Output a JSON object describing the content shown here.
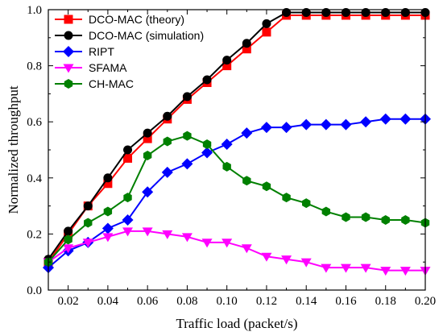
{
  "chart_data": {
    "type": "line",
    "title": "",
    "xlabel": "Traffic load (packet/s)",
    "ylabel": "Normalized throughput",
    "xlim": [
      0.01,
      0.2
    ],
    "ylim": [
      0.0,
      1.0
    ],
    "x_ticks": [
      "0.02",
      "0.04",
      "0.06",
      "0.08",
      "0.10",
      "0.12",
      "0.14",
      "0.16",
      "0.18",
      "0.20"
    ],
    "y_ticks": [
      "0.0",
      "0.2",
      "0.4",
      "0.6",
      "0.8",
      "1.0"
    ],
    "grid": false,
    "legend_position": "top-left",
    "x": [
      0.01,
      0.02,
      0.03,
      0.04,
      0.05,
      0.06,
      0.07,
      0.08,
      0.09,
      0.1,
      0.11,
      0.12,
      0.13,
      0.14,
      0.15,
      0.16,
      0.17,
      0.18,
      0.19,
      0.2
    ],
    "series": [
      {
        "name": "DCO-MAC (theory)",
        "color": "#ff0000",
        "marker": "square",
        "values": [
          0.1,
          0.2,
          0.3,
          0.38,
          0.47,
          0.54,
          0.61,
          0.68,
          0.74,
          0.8,
          0.86,
          0.92,
          0.98,
          0.98,
          0.98,
          0.98,
          0.98,
          0.98,
          0.98,
          0.98
        ]
      },
      {
        "name": "DCO-MAC (simulation)",
        "color": "#000000",
        "marker": "circle",
        "values": [
          0.11,
          0.21,
          0.3,
          0.4,
          0.5,
          0.56,
          0.62,
          0.69,
          0.75,
          0.82,
          0.88,
          0.95,
          0.99,
          0.99,
          0.99,
          0.99,
          0.99,
          0.99,
          0.99,
          0.99
        ]
      },
      {
        "name": "RIPT",
        "color": "#0000ff",
        "marker": "diamond",
        "values": [
          0.08,
          0.14,
          0.17,
          0.22,
          0.25,
          0.35,
          0.42,
          0.45,
          0.49,
          0.52,
          0.56,
          0.58,
          0.58,
          0.59,
          0.59,
          0.59,
          0.6,
          0.61,
          0.61,
          0.61
        ]
      },
      {
        "name": "SFAMA",
        "color": "#ff00ff",
        "marker": "triangle-down",
        "values": [
          0.1,
          0.15,
          0.17,
          0.19,
          0.21,
          0.21,
          0.2,
          0.19,
          0.17,
          0.17,
          0.15,
          0.12,
          0.11,
          0.1,
          0.08,
          0.08,
          0.08,
          0.07,
          0.07,
          0.07
        ]
      },
      {
        "name": "CH-MAC",
        "color": "#008000",
        "marker": "hexagon",
        "values": [
          0.1,
          0.18,
          0.24,
          0.28,
          0.33,
          0.48,
          0.53,
          0.55,
          0.52,
          0.44,
          0.39,
          0.37,
          0.33,
          0.31,
          0.28,
          0.26,
          0.26,
          0.25,
          0.25,
          0.24
        ]
      }
    ]
  }
}
